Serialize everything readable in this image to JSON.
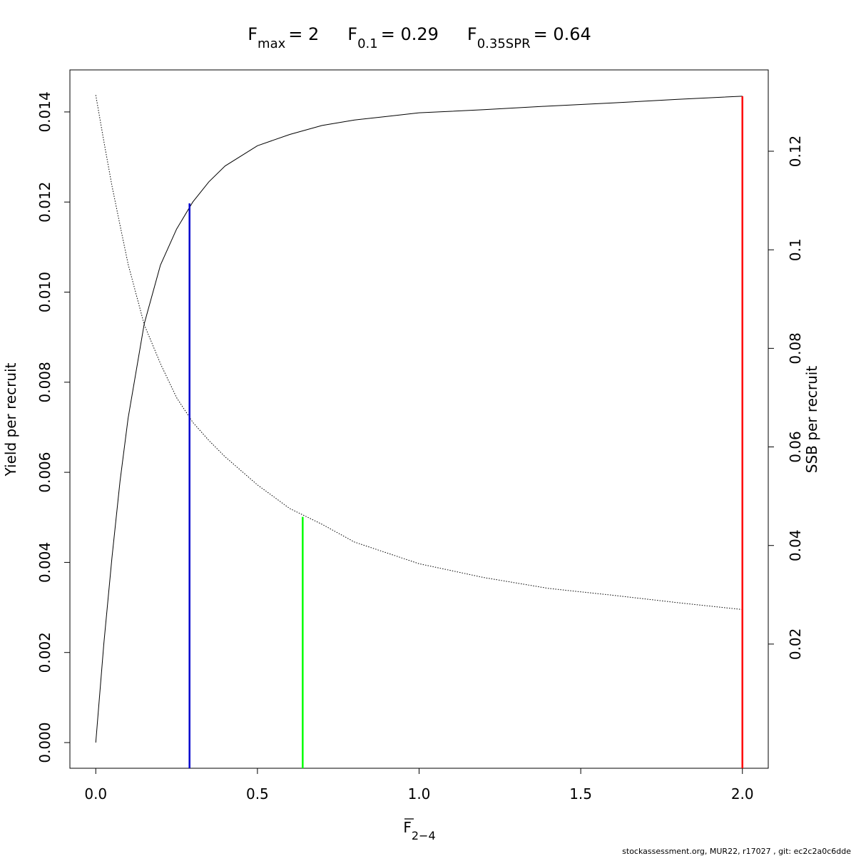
{
  "chart_data": {
    "type": "line",
    "title": [
      {
        "symbol": "F",
        "subscript": "max",
        "text": "= 2"
      },
      {
        "symbol": "F",
        "subscript": "0.1",
        "text": "= 0.29"
      },
      {
        "symbol": "F",
        "subscript": "0.35SPR",
        "text": "= 0.64"
      }
    ],
    "xlabel": {
      "symbol": "F",
      "subscript": "2−4"
    },
    "ylabel": "Yield per recruit",
    "y2label": "SSB per recruit",
    "footnote": "stockassessment.org, MUR22, r17027 , git: ec2c2a0c6dde",
    "x": [
      0,
      0.025,
      0.05,
      0.075,
      0.1,
      0.15,
      0.2,
      0.25,
      0.3,
      0.35,
      0.4,
      0.5,
      0.6,
      0.7,
      0.8,
      0.9,
      1.0,
      1.2,
      1.4,
      1.6,
      1.8,
      2.0
    ],
    "series": [
      {
        "axis": "y",
        "color": "#000000",
        "dashed": false,
        "values": [
          0,
          0.0022,
          0.0041,
          0.0058,
          0.0072,
          0.0093,
          0.0106,
          0.0114,
          0.012,
          0.01245,
          0.0128,
          0.01325,
          0.0135,
          0.0137,
          0.01382,
          0.0139,
          0.01398,
          0.01405,
          0.01413,
          0.0142,
          0.01428,
          0.01435
        ]
      },
      {
        "axis": "y2",
        "color": "#000000",
        "dashed": true,
        "values": [
          0.1314,
          0.122,
          0.113,
          0.105,
          0.0971,
          0.0848,
          0.0769,
          0.07,
          0.065,
          0.0613,
          0.058,
          0.0523,
          0.0475,
          0.0443,
          0.0407,
          0.0385,
          0.0363,
          0.0335,
          0.0313,
          0.0299,
          0.0284,
          0.027
        ]
      }
    ],
    "reference_lines": [
      {
        "x": 0.29,
        "y": 0.01197,
        "axis": "y",
        "color": "#0000cd"
      },
      {
        "x": 0.64,
        "y": 0.0458,
        "axis": "y2",
        "color": "#00ff00"
      },
      {
        "x": 2.0,
        "y": 0.01435,
        "axis": "y",
        "color": "#ff0000"
      }
    ],
    "xlim": [
      -0.08,
      2.08
    ],
    "xticks": [
      {
        "value": 0,
        "label": "0.0"
      },
      0.5,
      {
        "value": 1,
        "label": "1.0"
      },
      1.5,
      {
        "value": 2,
        "label": "2.0"
      }
    ],
    "ylim": [
      -0.00057,
      0.014933
    ],
    "yticks": [
      {
        "value": 0,
        "label": "0.000"
      },
      {
        "value": 0.002,
        "label": "0.002"
      },
      {
        "value": 0.004,
        "label": "0.004"
      },
      {
        "value": 0.006,
        "label": "0.006"
      },
      {
        "value": 0.008,
        "label": "0.008"
      },
      {
        "value": 0.01,
        "label": "0.010"
      },
      {
        "value": 0.012,
        "label": "0.012"
      },
      {
        "value": 0.014,
        "label": "0.014"
      }
    ],
    "y2lim": [
      -0.0052,
      0.1365
    ],
    "y2ticks": [
      0.02,
      0.04,
      0.06,
      0.08,
      0.1,
      0.12
    ]
  }
}
